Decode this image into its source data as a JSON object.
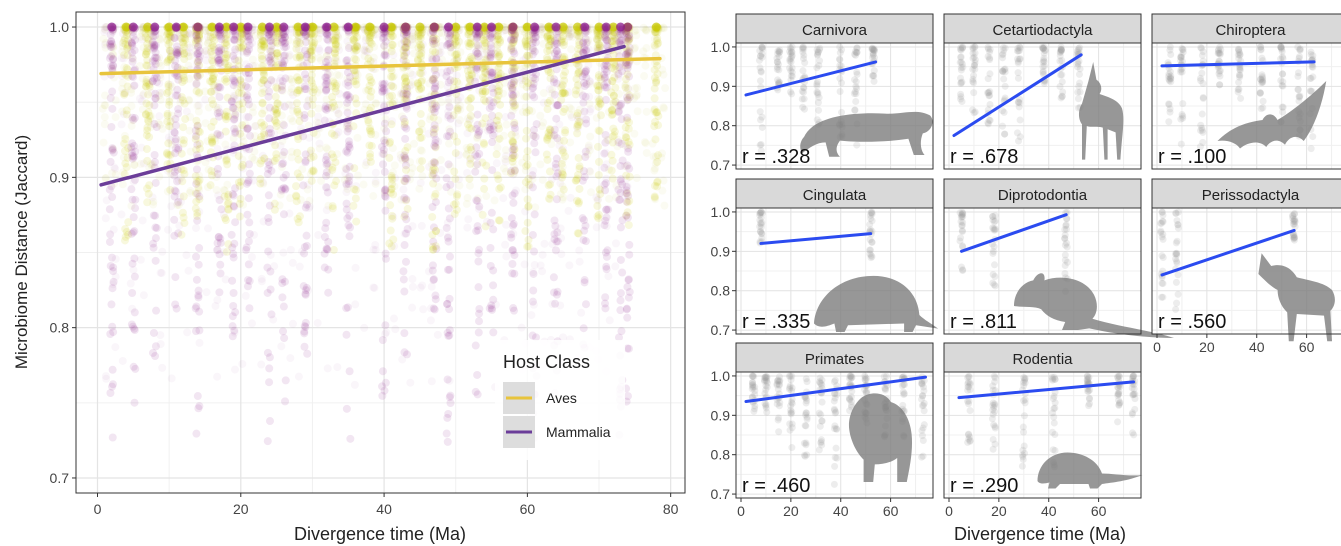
{
  "chart_data": [
    {
      "type": "scatter",
      "xlabel": "Divergence time (Ma)",
      "ylabel": "Microbiome Distance (Jaccard)",
      "xlim": [
        -3,
        82
      ],
      "ylim": [
        0.69,
        1.01
      ],
      "xticks": [
        0,
        20,
        40,
        60,
        80
      ],
      "yticks": [
        0.7,
        0.8,
        0.9,
        1.0
      ],
      "ytick_labels": [
        "0.7",
        "0.8",
        "0.9",
        "1.0"
      ],
      "grid": true,
      "legend": {
        "title": "Host Class",
        "position": "bottom-right",
        "entries": [
          {
            "label": "Aves",
            "color": "#e8c43c"
          },
          {
            "label": "Mammalia",
            "color": "#6b3d99"
          }
        ]
      },
      "series": [
        {
          "name": "Aves",
          "color": "#c8c800",
          "point_columns_x": [
            4,
            7,
            10,
            12,
            14,
            16,
            18,
            20,
            23,
            25,
            28,
            30,
            33,
            36,
            38,
            41,
            43,
            45,
            47,
            50,
            52,
            54,
            56,
            58,
            60,
            63,
            65,
            67,
            70,
            72,
            74,
            78
          ],
          "fit": {
            "x": [
              0.5,
              78.5
            ],
            "y": [
              0.969,
              0.979
            ],
            "color": "#e8c43c"
          }
        },
        {
          "name": "Mammalia",
          "color": "#8a1a8a",
          "point_columns_x": [
            2,
            5,
            8,
            11,
            14,
            17,
            19,
            21,
            24,
            26,
            29,
            32,
            35,
            40,
            43,
            47,
            49,
            53,
            55,
            58,
            61,
            64,
            68,
            71,
            73,
            74
          ],
          "fit": {
            "x": [
              0.5,
              73.5
            ],
            "y": [
              0.895,
              0.987
            ],
            "color": "#6b3d99"
          }
        }
      ]
    },
    {
      "type": "scatter",
      "facet_layout": "grid 3x3",
      "xlabel": "Divergence time (Ma)",
      "xticks": [
        0,
        20,
        40,
        60
      ],
      "yticks": [
        0.7,
        0.8,
        0.9,
        1.0
      ],
      "ytick_labels": [
        "0.7",
        "0.8",
        "0.9",
        "1.0"
      ],
      "point_color": "#9a9a9a",
      "fit_color": "#2b4bf0",
      "panels": [
        {
          "name": "Carnivora",
          "r_label": "r = .328",
          "fit": {
            "x": [
              2,
              54
            ],
            "y": [
              0.878,
              0.962
            ]
          },
          "columns": [
            8,
            15,
            20,
            25,
            31,
            40,
            46,
            53
          ],
          "silhouette": "quadruped-cat"
        },
        {
          "name": "Cetartiodactyla",
          "r_label": "r = .678",
          "fit": {
            "x": [
              2,
              53
            ],
            "y": [
              0.775,
              0.98
            ]
          },
          "columns": [
            5,
            10,
            16,
            22,
            28,
            38,
            45,
            52
          ],
          "silhouette": "antelope"
        },
        {
          "name": "Chiroptera",
          "r_label": "r = .100",
          "fit": {
            "x": [
              2,
              63
            ],
            "y": [
              0.952,
              0.962
            ]
          },
          "columns": [
            5,
            10,
            18,
            25,
            33,
            42,
            50,
            57,
            62
          ],
          "silhouette": "bat"
        },
        {
          "name": "Cingulata",
          "r_label": "r = .335",
          "fit": {
            "x": [
              8,
              52
            ],
            "y": [
              0.92,
              0.945
            ]
          },
          "columns": [
            8,
            52
          ],
          "silhouette": "armadillo"
        },
        {
          "name": "Diprotodontia",
          "r_label": "r = .811",
          "fit": {
            "x": [
              5,
              47
            ],
            "y": [
              0.9,
              0.993
            ]
          },
          "columns": [
            5,
            18,
            47
          ],
          "silhouette": "kangaroo"
        },
        {
          "name": "Perissodactyla",
          "r_label": "r = .560",
          "fit": {
            "x": [
              2,
              55
            ],
            "y": [
              0.84,
              0.953
            ]
          },
          "columns": [
            2,
            8,
            55
          ],
          "silhouette": "horse"
        },
        {
          "name": "Primates",
          "r_label": "r = .460",
          "fit": {
            "x": [
              2,
              74
            ],
            "y": [
              0.935,
              0.997
            ]
          },
          "columns": [
            5,
            10,
            15,
            20,
            26,
            32,
            38,
            44,
            50,
            58,
            65,
            73
          ],
          "silhouette": "ape"
        },
        {
          "name": "Rodentia",
          "r_label": "r = .290",
          "fit": {
            "x": [
              4,
              74
            ],
            "y": [
              0.945,
              0.985
            ]
          },
          "columns": [
            8,
            18,
            30,
            42,
            56,
            68,
            74
          ],
          "silhouette": "mouse"
        }
      ]
    }
  ]
}
